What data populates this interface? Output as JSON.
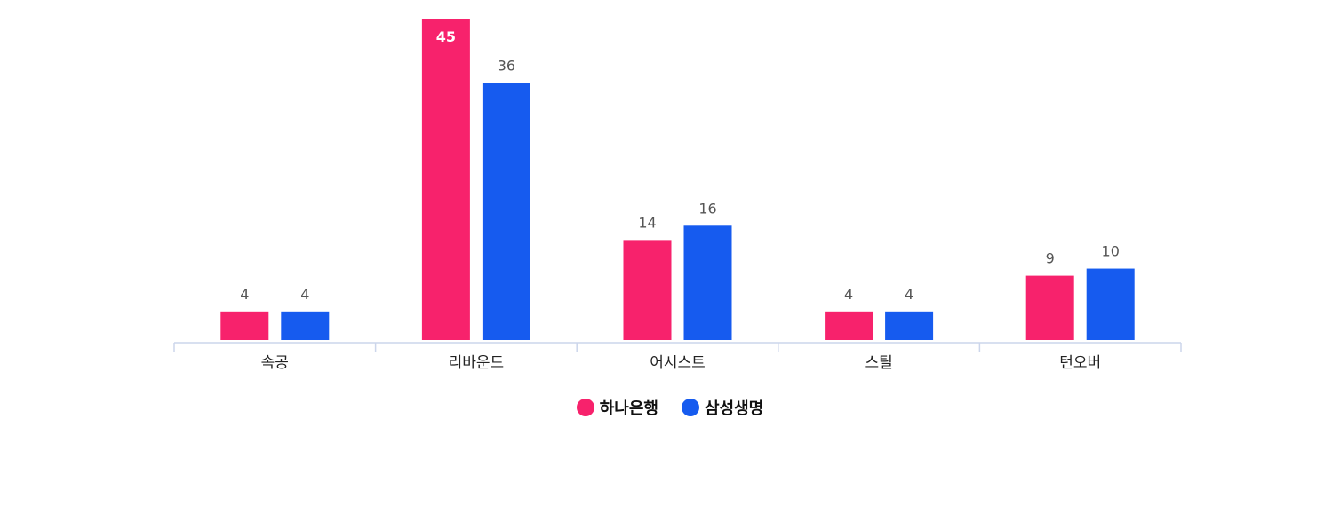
{
  "chart_data": {
    "type": "bar",
    "categories": [
      "속공",
      "리바운드",
      "어시스트",
      "스틸",
      "턴오버"
    ],
    "series": [
      {
        "name": "하나은행",
        "values": [
          4,
          45,
          14,
          4,
          9
        ],
        "color": "#f7226c"
      },
      {
        "name": "삼성생명",
        "values": [
          4,
          36,
          16,
          4,
          10
        ],
        "color": "#165bef"
      }
    ],
    "ylim": [
      0,
      45
    ],
    "grid": false,
    "legend_position": "bottom-center",
    "title": "",
    "xlabel": "",
    "ylabel": ""
  }
}
